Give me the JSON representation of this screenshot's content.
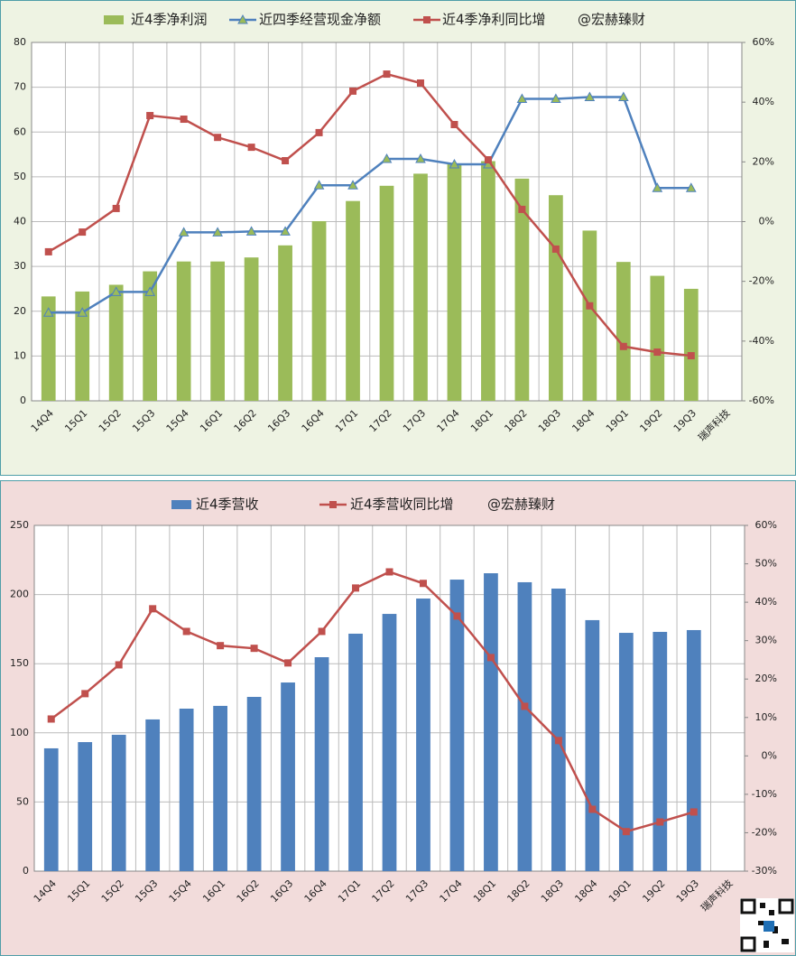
{
  "chart_data": [
    {
      "type": "bar_line",
      "categories": [
        "14Q4",
        "15Q1",
        "15Q2",
        "15Q3",
        "15Q4",
        "16Q1",
        "16Q2",
        "16Q3",
        "16Q4",
        "17Q1",
        "17Q2",
        "17Q3",
        "17Q4",
        "18Q1",
        "18Q2",
        "18Q3",
        "18Q4",
        "19Q1",
        "19Q2",
        "19Q3",
        "瑞声科技"
      ],
      "series": [
        {
          "name": "近4季净利润",
          "type": "bar",
          "color": "#9bbb59",
          "values": [
            23.3,
            24.4,
            25.9,
            28.9,
            31.1,
            31.1,
            32,
            34.7,
            40.1,
            44.6,
            48,
            50.7,
            53,
            53.5,
            49.6,
            45.9,
            38,
            31,
            27.9,
            25,
            null
          ]
        },
        {
          "name": "近四季经营现金净额",
          "type": "line",
          "marker": "triangle",
          "color": "#4f81bd",
          "values": [
            19.7,
            19.7,
            24.3,
            24.3,
            37.6,
            37.6,
            37.8,
            37.8,
            48.1,
            48.1,
            54,
            54,
            52.8,
            52.8,
            67.4,
            67.4,
            67.8,
            67.8,
            47.5,
            47.5,
            null
          ]
        },
        {
          "name": "近4季净利同比增",
          "type": "line",
          "marker": "square",
          "axis": "y2",
          "color": "#c0504d",
          "values": [
            -10.1,
            -3.5,
            4.4,
            35.5,
            34.3,
            28.2,
            24.9,
            20.4,
            29.8,
            43.7,
            49.4,
            46.4,
            32.5,
            20.7,
            4.1,
            -9.2,
            -28.2,
            -41.8,
            -43.7,
            -44.9,
            null
          ]
        }
      ],
      "annotation": "@宏赫臻财",
      "ylim": [
        0,
        80
      ],
      "yticks": [
        0,
        10,
        20,
        30,
        40,
        50,
        60,
        70,
        80
      ],
      "y2lim": [
        -60,
        60
      ],
      "y2ticks": [
        {
          "value": -60,
          "label": "-60%"
        },
        {
          "value": -40,
          "label": "-40%"
        },
        {
          "value": -20,
          "label": "-20%"
        },
        {
          "value": 0,
          "label": "0%"
        },
        {
          "value": 20,
          "label": "20%"
        },
        {
          "value": 40,
          "label": "40%"
        },
        {
          "value": 60,
          "label": "60%"
        }
      ],
      "grid": true
    },
    {
      "type": "bar_line",
      "categories": [
        "14Q4",
        "15Q1",
        "15Q2",
        "15Q3",
        "15Q4",
        "16Q1",
        "16Q2",
        "16Q3",
        "16Q4",
        "17Q1",
        "17Q2",
        "17Q3",
        "17Q4",
        "18Q1",
        "18Q2",
        "18Q3",
        "18Q4",
        "19Q1",
        "19Q2",
        "19Q3",
        "瑞声科技"
      ],
      "series": [
        {
          "name": "近4季营收",
          "type": "bar",
          "color": "#4f81bd",
          "values": [
            88.8,
            93.3,
            98.6,
            109.7,
            117.5,
            119.5,
            126,
            136.4,
            154.7,
            171.7,
            186,
            197.1,
            210.8,
            215.4,
            208.9,
            204.3,
            181.5,
            172.3,
            173,
            174.3,
            null
          ]
        },
        {
          "name": "近4季营收同比增",
          "type": "line",
          "marker": "square",
          "axis": "y2",
          "color": "#c0504d",
          "values": [
            9.6,
            16.2,
            23.7,
            38.3,
            32.4,
            28.7,
            28,
            24.2,
            32.4,
            43.7,
            47.9,
            44.9,
            36.4,
            25.6,
            12.9,
            4,
            -13.9,
            -19.7,
            -17.2,
            -14.6,
            null
          ]
        }
      ],
      "annotation": "@宏赫臻财",
      "ylim": [
        0,
        250
      ],
      "yticks": [
        0,
        50,
        100,
        150,
        200,
        250
      ],
      "y2lim": [
        -30,
        60
      ],
      "y2ticks": [
        {
          "value": -30,
          "label": "-30%"
        },
        {
          "value": -20,
          "label": "-20%"
        },
        {
          "value": -10,
          "label": "-10%"
        },
        {
          "value": 0,
          "label": "0%"
        },
        {
          "value": 10,
          "label": "10%"
        },
        {
          "value": 20,
          "label": "20%"
        },
        {
          "value": 30,
          "label": "30%"
        },
        {
          "value": 40,
          "label": "40%"
        },
        {
          "value": 50,
          "label": "50%"
        },
        {
          "value": 60,
          "label": "60%"
        }
      ],
      "grid": true
    }
  ]
}
